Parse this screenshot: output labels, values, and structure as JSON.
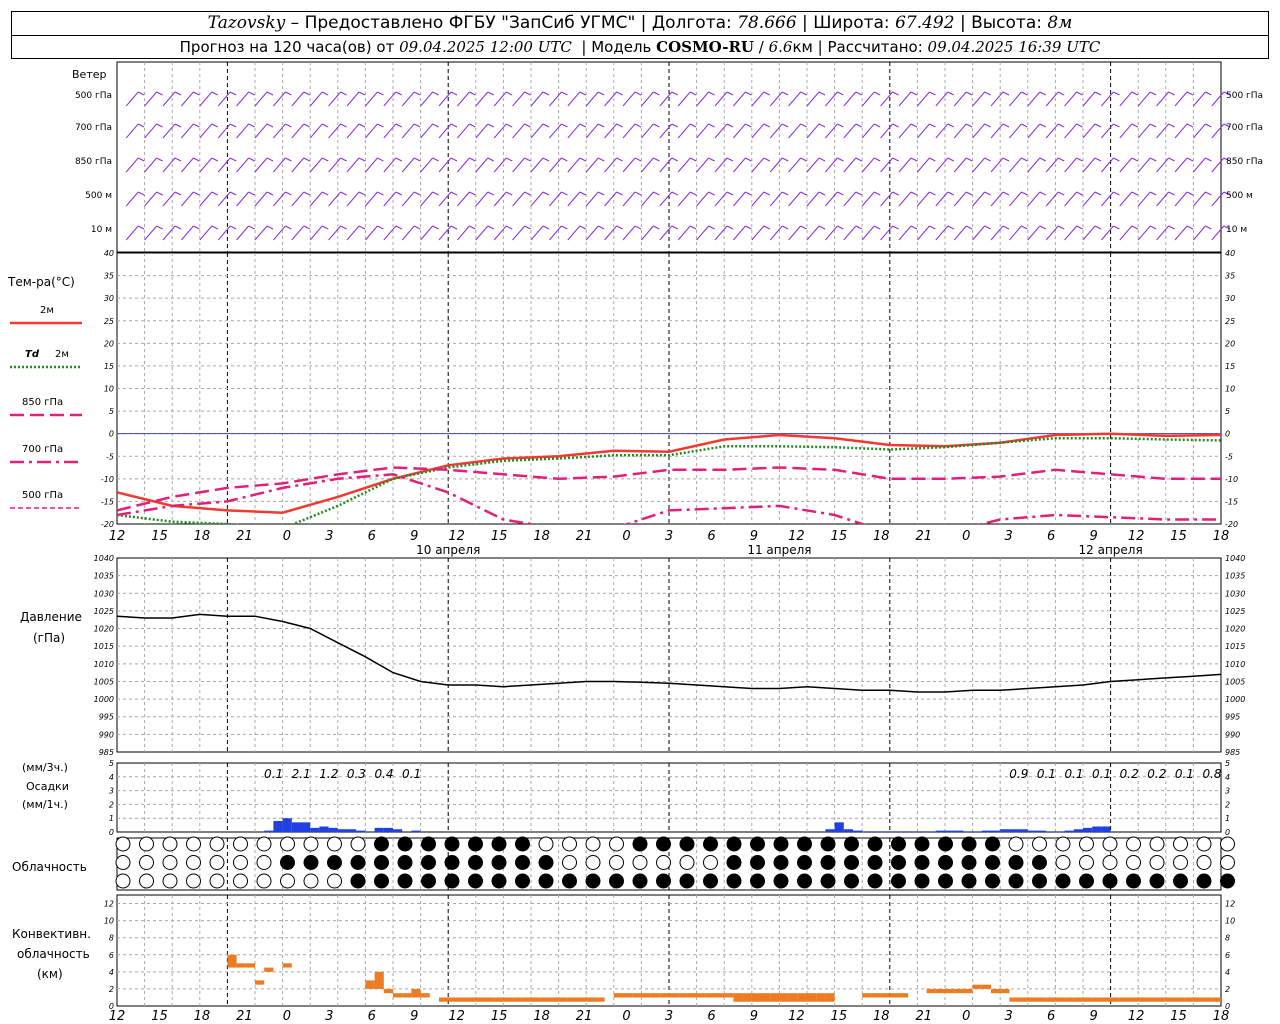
{
  "header": {
    "station": "Tazovsky",
    "provider": "– Предоставлено ФГБУ \"ЗапСиб УГМС\"",
    "lon_label": "Долгота:",
    "lon": "78.666",
    "lat_label": "Широта:",
    "lat": "67.492",
    "alt_label": "Высота:",
    "alt": "8м",
    "forecast_prefix": "Прогноз на 120 часа(ов) от",
    "forecast_from": "09.04.2025 12:00 UTC",
    "model_label": "Модель",
    "model": "COSMO-RU",
    "model_res": "6.6",
    "model_res_unit": "км",
    "calc_label": "Рассчитано:",
    "calc_time": "09.04.2025 16:39 UTC"
  },
  "colors": {
    "wind": "#8a2be2",
    "t2m": "#ee3a30",
    "td2m": "#228b22",
    "t850": "#e0207a",
    "pressure": "#000000",
    "precip": "#2040e0",
    "convective": "#ee7a22",
    "grid": "#a8a8a8",
    "zero_line": "#4040d0"
  },
  "panels": {
    "wind": {
      "title": "Ветер",
      "levels": [
        "500 гПа",
        "700 гПа",
        "850 гПа",
        "500 м",
        "10  м"
      ]
    },
    "temp": {
      "title": "Тем-ра(°C)",
      "legend": [
        "2м",
        "Td  2м",
        "850 гПа",
        "700 гПа",
        "500 гПа"
      ],
      "legend_td_prefix": "Td",
      "legend_td_suffix": "2м"
    },
    "pressure": {
      "title1": "Давление",
      "title2": "(гПа)"
    },
    "precip": {
      "label_top": "(мм/3ч.)",
      "label_mid": "Осадки",
      "label_bot": "(мм/1ч.)"
    },
    "cloud": {
      "title": "Облачность"
    },
    "convective": {
      "title1": "Конвективн.",
      "title2": "облачность",
      "title3": "(км)"
    }
  },
  "time_axis": {
    "hour_labels": [
      "12",
      "15",
      "18",
      "21",
      "0",
      "3",
      "6",
      "9",
      "12",
      "15",
      "18",
      "21",
      "0",
      "3",
      "6",
      "9",
      "12",
      "15",
      "18",
      "21",
      "0",
      "3",
      "6",
      "9",
      "12",
      "15",
      "18"
    ],
    "date_labels": [
      "10 апреля",
      "11 апреля",
      "12 апреля"
    ]
  },
  "chart_data": [
    {
      "type": "line",
      "panel": "temperature",
      "x_unit": "hours since 09.04.2025 12:00 UTC",
      "ylim": [
        -20,
        40
      ],
      "yticks": [
        -20,
        -15,
        -10,
        -5,
        0,
        5,
        10,
        15,
        20,
        25,
        30,
        35,
        40
      ],
      "series": [
        {
          "name": "2м",
          "x": [
            0,
            6,
            12,
            18,
            24,
            30,
            36,
            42,
            48,
            54,
            60,
            66,
            72,
            78,
            84,
            90,
            96,
            102,
            108,
            114,
            120
          ],
          "y": [
            -13,
            -16,
            -17,
            -17.5,
            -14,
            -10,
            -7,
            -5.5,
            -5,
            -3.8,
            -4,
            -1.3,
            -0.3,
            -1,
            -2.5,
            -2.8,
            -2,
            -0.3,
            0,
            -0.5,
            -0.3
          ]
        },
        {
          "name": "Td  2м",
          "x": [
            0,
            6,
            12,
            18,
            24,
            30,
            36,
            42,
            48,
            54,
            60,
            66,
            72,
            78,
            84,
            90,
            96,
            102,
            108,
            114,
            120
          ],
          "y": [
            -18,
            -19.5,
            -20,
            -21,
            -16,
            -10,
            -7.5,
            -6,
            -5.5,
            -4.8,
            -4.8,
            -2.8,
            -2.8,
            -3,
            -3.5,
            -3,
            -2,
            -1,
            -1,
            -1.3,
            -1.5
          ]
        },
        {
          "name": "850 гПа",
          "x": [
            0,
            6,
            12,
            18,
            24,
            30,
            36,
            42,
            48,
            54,
            60,
            66,
            72,
            78,
            84,
            90,
            96,
            102,
            108,
            114,
            120
          ],
          "y": [
            -17,
            -14,
            -12,
            -11,
            -9,
            -7.5,
            -8,
            -9,
            -10,
            -9.5,
            -8,
            -8,
            -7.5,
            -8,
            -10,
            -10,
            -9.5,
            -8,
            -9,
            -10,
            -10
          ]
        },
        {
          "name": "700 гПа",
          "x": [
            0,
            6,
            12,
            18,
            24,
            30,
            36,
            42,
            48,
            54,
            60,
            66,
            72,
            78,
            84,
            90,
            96,
            102,
            108,
            114,
            120
          ],
          "y": [
            -18,
            -16,
            -15,
            -12,
            -10,
            -9,
            -13,
            -19,
            -21,
            -21,
            -17,
            -16.5,
            -16,
            -18,
            -22,
            -22,
            -19,
            -18,
            -18.5,
            -19,
            -19
          ]
        },
        {
          "name": "500 гПа",
          "x": [],
          "y": []
        }
      ]
    },
    {
      "type": "line",
      "panel": "pressure",
      "x_unit": "hours since 09.04.2025 12:00 UTC",
      "ylim": [
        985,
        1040
      ],
      "yticks": [
        985,
        990,
        995,
        1000,
        1005,
        1010,
        1015,
        1020,
        1025,
        1030,
        1035,
        1040
      ],
      "series": [
        {
          "name": "Давление",
          "x": [
            0,
            3,
            6,
            9,
            12,
            15,
            18,
            21,
            24,
            27,
            30,
            33,
            36,
            39,
            42,
            45,
            48,
            51,
            54,
            57,
            60,
            63,
            66,
            69,
            72,
            75,
            78,
            81,
            84,
            87,
            90,
            93,
            96,
            99,
            102,
            105,
            108,
            111,
            114,
            117,
            120
          ],
          "y": [
            1023.5,
            1023,
            1023,
            1024,
            1023.5,
            1023.5,
            1022,
            1020,
            1016,
            1012,
            1007.5,
            1005,
            1004,
            1004,
            1003.5,
            1004,
            1004.5,
            1005,
            1005,
            1004.8,
            1004.5,
            1004,
            1003.5,
            1003,
            1003,
            1003.5,
            1003,
            1002.5,
            1002.5,
            1002,
            1002,
            1002.5,
            1002.5,
            1003,
            1003.5,
            1004,
            1005,
            1005.5,
            1006,
            1006.5,
            1007
          ]
        }
      ]
    },
    {
      "type": "bar",
      "panel": "precipitation",
      "unit": "мм/1ч.",
      "ylim": [
        0,
        5
      ],
      "yticks": [
        0,
        1,
        2,
        3,
        4,
        5
      ],
      "three_hour_totals": [
        {
          "hour": 18,
          "value": "0.1"
        },
        {
          "hour": 21,
          "value": "2.1"
        },
        {
          "hour": 24,
          "value": "1.2"
        },
        {
          "hour": 27,
          "value": "0.3"
        },
        {
          "hour": 30,
          "value": "0.4"
        },
        {
          "hour": 33,
          "value": "0.1"
        },
        {
          "hour": 99,
          "value": "0.9"
        },
        {
          "hour": 102,
          "value": "0.1"
        },
        {
          "hour": 105,
          "value": "0.1"
        },
        {
          "hour": 108,
          "value": "0.1"
        },
        {
          "hour": 111,
          "value": "0.2"
        },
        {
          "hour": 114,
          "value": "0.2"
        },
        {
          "hour": 117,
          "value": "0.1"
        },
        {
          "hour": 120,
          "value": "0.8"
        }
      ],
      "hourly_x": [
        17,
        18,
        19,
        20,
        21,
        22,
        23,
        24,
        25,
        26,
        27,
        28,
        29,
        30,
        31,
        32,
        33,
        78,
        79,
        80,
        81,
        82,
        83,
        84,
        85,
        86,
        87,
        88,
        89,
        90,
        91,
        92,
        93,
        94,
        95,
        96,
        97,
        98,
        99,
        100,
        101,
        102,
        103,
        104,
        105,
        106,
        107,
        108
      ],
      "hourly_y": [
        0.1,
        0.8,
        1.0,
        0.7,
        0.7,
        0.3,
        0.4,
        0.3,
        0.2,
        0.2,
        0.1,
        0,
        0.3,
        0.3,
        0.2,
        0,
        0.1,
        0.2,
        0.7,
        0.2,
        0.1,
        0.05,
        0.05,
        0.05,
        0.05,
        0.05,
        0.05,
        0.05,
        0.05,
        0.1,
        0.1,
        0.1,
        0.05,
        0.05,
        0.1,
        0.1,
        0.2,
        0.2,
        0.2,
        0.1,
        0.1,
        0.05,
        0.05,
        0.1,
        0.2,
        0.3,
        0.4,
        0.4
      ]
    },
    {
      "type": "bar",
      "panel": "convective",
      "unit": "км",
      "ylim": [
        0,
        13
      ],
      "yticks": [
        0,
        2,
        4,
        6,
        8,
        10,
        12
      ],
      "bars": [
        {
          "x": 13,
          "base": 4.5,
          "top": 6
        },
        {
          "x": 14,
          "base": 4.5,
          "top": 5
        },
        {
          "x": 15,
          "base": 4.5,
          "top": 5
        },
        {
          "x": 16,
          "base": 2.5,
          "top": 3
        },
        {
          "x": 17,
          "base": 4,
          "top": 4.5
        },
        {
          "x": 19,
          "base": 4.5,
          "top": 5
        },
        {
          "x": 28,
          "base": 2,
          "top": 3
        },
        {
          "x": 29,
          "base": 2,
          "top": 4
        },
        {
          "x": 30,
          "base": 1.5,
          "top": 2
        },
        {
          "x": 31,
          "base": 1,
          "top": 1.5
        },
        {
          "x": 32,
          "base": 1,
          "top": 1.5
        },
        {
          "x": 33,
          "base": 1,
          "top": 2
        },
        {
          "x": 34,
          "base": 1,
          "top": 1.5
        },
        {
          "x": 36,
          "base": 0.5,
          "top": 1
        },
        {
          "x": 37,
          "base": 0.5,
          "top": 1
        },
        {
          "x": 38,
          "base": 0.5,
          "top": 1
        },
        {
          "x": 39,
          "base": 0.5,
          "top": 1
        },
        {
          "x": 40,
          "base": 0.5,
          "top": 1
        },
        {
          "x": 41,
          "base": 0.5,
          "top": 1
        },
        {
          "x": 42,
          "base": 0.5,
          "top": 1
        },
        {
          "x": 43,
          "base": 0.5,
          "top": 1
        },
        {
          "x": 44,
          "base": 0.5,
          "top": 1
        },
        {
          "x": 45,
          "base": 0.5,
          "top": 1
        },
        {
          "x": 46,
          "base": 0.5,
          "top": 1
        },
        {
          "x": 47,
          "base": 0.5,
          "top": 1
        },
        {
          "x": 48,
          "base": 0.5,
          "top": 1
        },
        {
          "x": 49,
          "base": 0.5,
          "top": 1
        },
        {
          "x": 50,
          "base": 0.5,
          "top": 1
        },
        {
          "x": 51,
          "base": 0.5,
          "top": 1
        },
        {
          "x": 52,
          "base": 0.5,
          "top": 1
        },
        {
          "x": 53,
          "base": 0.5,
          "top": 1
        },
        {
          "x": 55,
          "base": 1,
          "top": 1.5
        },
        {
          "x": 56,
          "base": 1,
          "top": 1.5
        },
        {
          "x": 57,
          "base": 1,
          "top": 1.5
        },
        {
          "x": 58,
          "base": 1,
          "top": 1.5
        },
        {
          "x": 59,
          "base": 1,
          "top": 1.5
        },
        {
          "x": 60,
          "base": 1,
          "top": 1.5
        },
        {
          "x": 61,
          "base": 1,
          "top": 1.5
        },
        {
          "x": 62,
          "base": 1,
          "top": 1.5
        },
        {
          "x": 63,
          "base": 1,
          "top": 1.5
        },
        {
          "x": 64,
          "base": 1,
          "top": 1.5
        },
        {
          "x": 65,
          "base": 1,
          "top": 1.5
        },
        {
          "x": 66,
          "base": 1,
          "top": 1.5
        },
        {
          "x": 67,
          "base": 1,
          "top": 1.5
        },
        {
          "x": 68,
          "base": 0.5,
          "top": 1.5
        },
        {
          "x": 69,
          "base": 0.5,
          "top": 1.5
        },
        {
          "x": 70,
          "base": 0.5,
          "top": 1.5
        },
        {
          "x": 71,
          "base": 0.5,
          "top": 1.5
        },
        {
          "x": 72,
          "base": 0.5,
          "top": 1.5
        },
        {
          "x": 73,
          "base": 0.5,
          "top": 1.5
        },
        {
          "x": 74,
          "base": 0.5,
          "top": 1.5
        },
        {
          "x": 75,
          "base": 0.5,
          "top": 1.5
        },
        {
          "x": 76,
          "base": 0.5,
          "top": 1.5
        },
        {
          "x": 77,
          "base": 0.5,
          "top": 1.5
        },
        {
          "x": 78,
          "base": 0.5,
          "top": 1.5
        },
        {
          "x": 82,
          "base": 1,
          "top": 1.5
        },
        {
          "x": 83,
          "base": 1,
          "top": 1.5
        },
        {
          "x": 84,
          "base": 1,
          "top": 1.5
        },
        {
          "x": 85,
          "base": 1,
          "top": 1.5
        },
        {
          "x": 86,
          "base": 1,
          "top": 1.5
        },
        {
          "x": 89,
          "base": 1.5,
          "top": 2
        },
        {
          "x": 90,
          "base": 1.5,
          "top": 2
        },
        {
          "x": 91,
          "base": 1.5,
          "top": 2
        },
        {
          "x": 92,
          "base": 1.5,
          "top": 2
        },
        {
          "x": 93,
          "base": 1.5,
          "top": 2
        },
        {
          "x": 94,
          "base": 2,
          "top": 2.5
        },
        {
          "x": 95,
          "base": 2,
          "top": 2.5
        },
        {
          "x": 96,
          "base": 1.5,
          "top": 2
        },
        {
          "x": 97,
          "base": 1.5,
          "top": 2
        },
        {
          "x": 98,
          "base": 0.5,
          "top": 1
        },
        {
          "x": 99,
          "base": 0.5,
          "top": 1
        },
        {
          "x": 100,
          "base": 0.5,
          "top": 1
        },
        {
          "x": 101,
          "base": 0.5,
          "top": 1
        },
        {
          "x": 102,
          "base": 0.5,
          "top": 1
        },
        {
          "x": 103,
          "base": 0.5,
          "top": 1
        },
        {
          "x": 104,
          "base": 0.5,
          "top": 1
        },
        {
          "x": 105,
          "base": 0.5,
          "top": 1
        },
        {
          "x": 106,
          "base": 0.5,
          "top": 1
        },
        {
          "x": 107,
          "base": 0.5,
          "top": 1
        },
        {
          "x": 108,
          "base": 0.5,
          "top": 1
        },
        {
          "x": 109,
          "base": 0.5,
          "top": 1
        },
        {
          "x": 110,
          "base": 0.5,
          "top": 1
        },
        {
          "x": 111,
          "base": 0.5,
          "top": 1
        },
        {
          "x": 112,
          "base": 0.5,
          "top": 1
        },
        {
          "x": 113,
          "base": 0.5,
          "top": 1
        },
        {
          "x": 114,
          "base": 0.5,
          "top": 1
        },
        {
          "x": 115,
          "base": 0.5,
          "top": 1
        },
        {
          "x": 116,
          "base": 0.5,
          "top": 1
        },
        {
          "x": 117,
          "base": 0.5,
          "top": 1
        },
        {
          "x": 118,
          "base": 0.5,
          "top": 1
        },
        {
          "x": 119,
          "base": 0.5,
          "top": 1
        },
        {
          "x": 120,
          "base": 0.5,
          "top": 1
        }
      ]
    }
  ]
}
